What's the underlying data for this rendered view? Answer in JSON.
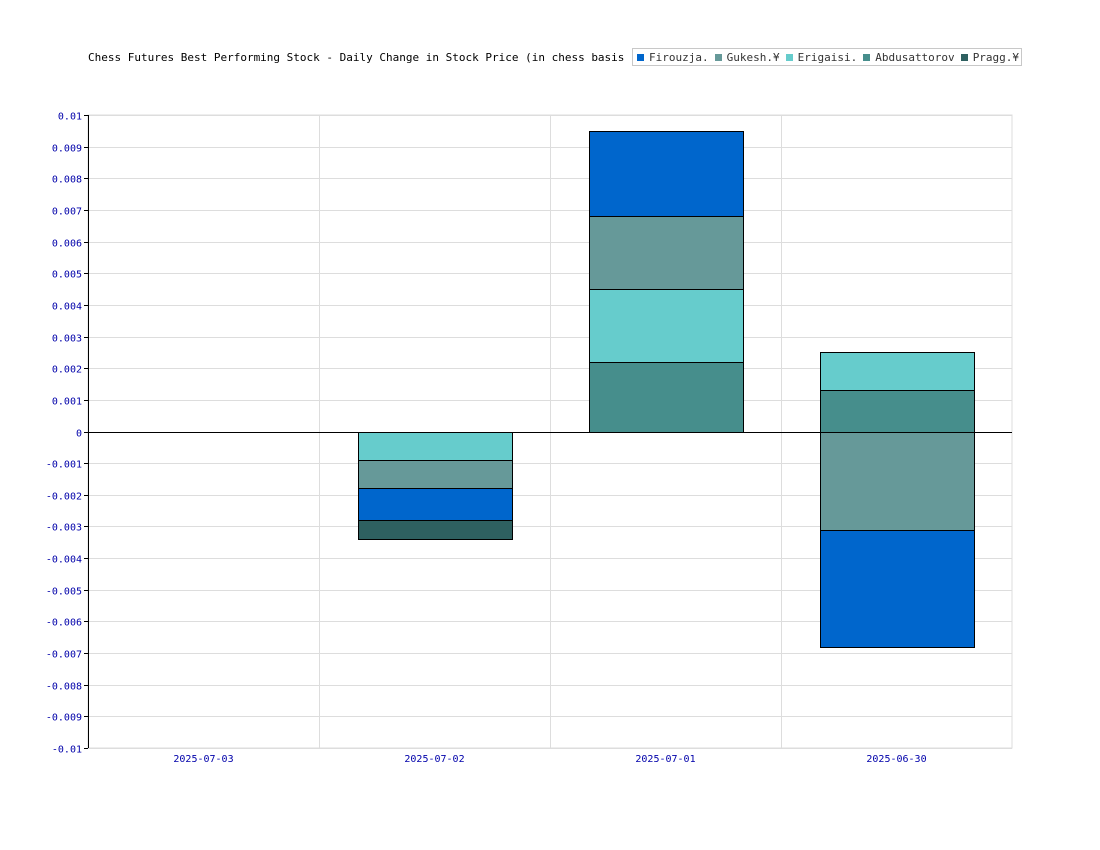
{
  "chart_data": {
    "type": "bar",
    "stacked": true,
    "title": "Chess Futures Best Performing Stock - Daily Change in Stock Price (in chess basis points",
    "xlabel": "",
    "ylabel": "",
    "categories": [
      "2025-07-03",
      "2025-07-02",
      "2025-07-01",
      "2025-06-30"
    ],
    "ylim": [
      -0.01,
      0.01
    ],
    "yticks": [
      "0.01",
      "0.009",
      "0.008",
      "0.007",
      "0.006",
      "0.005",
      "0.004",
      "0.003",
      "0.002",
      "0.001",
      "0",
      "-0.001",
      "-0.002",
      "-0.003",
      "-0.004",
      "-0.005",
      "-0.006",
      "-0.007",
      "-0.008",
      "-0.009",
      "-0.01"
    ],
    "grid": true,
    "legend_position": "top-right",
    "series": [
      {
        "name": "Pragg.¥",
        "color": "#2e6060",
        "values": [
          0,
          -0.0006,
          0,
          0
        ]
      },
      {
        "name": "Firouzja.",
        "color": "#0066cc",
        "values": [
          0,
          -0.001,
          0.0027,
          -0.0037
        ]
      },
      {
        "name": "Gukesh.¥",
        "color": "#669999",
        "values": [
          0,
          -0.0009,
          0.0023,
          -0.0031
        ]
      },
      {
        "name": "Erigaisi.",
        "color": "#66cccc",
        "values": [
          0,
          -0.0009,
          0.0023,
          0.0012
        ]
      },
      {
        "name": "Abdusattorov",
        "color": "#468e8c",
        "values": [
          0,
          0,
          0.0022,
          0.0013
        ]
      }
    ],
    "stack_order": [
      "Abdusattorov",
      "Erigaisi.",
      "Gukesh.¥",
      "Firouzja.",
      "Pragg.¥"
    ],
    "legend_order": [
      "Firouzja.",
      "Gukesh.¥",
      "Erigaisi.",
      "Abdusattorov",
      "Pragg.¥"
    ]
  }
}
